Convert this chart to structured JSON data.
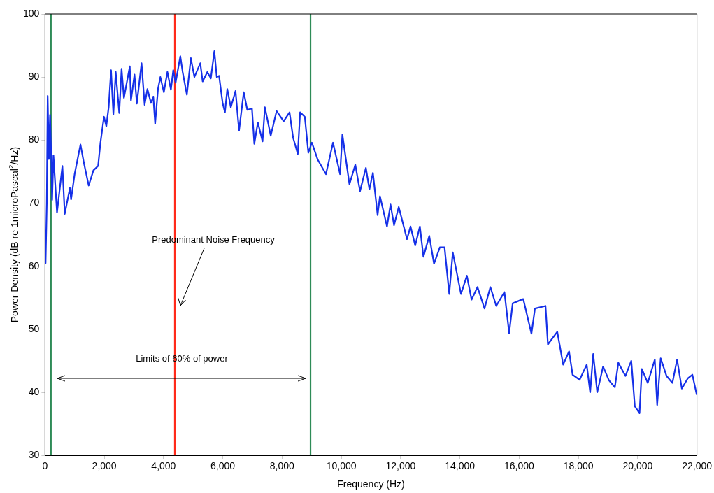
{
  "chart_data": {
    "type": "line",
    "xlabel": "Frequency (Hz)",
    "ylabel": "Power Density (dB re 1microPascal$^{2}$/Hz)",
    "xlim": [
      0,
      22000
    ],
    "xticks": [
      {
        "value": 0,
        "label": "0"
      },
      {
        "value": 2000,
        "label": "2,000"
      },
      {
        "value": 4000,
        "label": "4,000"
      },
      {
        "value": 6000,
        "label": "6,000"
      },
      {
        "value": 8000,
        "label": "8,000"
      },
      {
        "value": 10000,
        "label": "10,000"
      },
      {
        "value": 12000,
        "label": "12,000"
      },
      {
        "value": 14000,
        "label": "14,000"
      },
      {
        "value": 16000,
        "label": "16,000"
      },
      {
        "value": 18000,
        "label": "18,000"
      },
      {
        "value": 20000,
        "label": "20,000"
      },
      {
        "value": 22000,
        "label": "22,000"
      }
    ],
    "ylim": [
      30,
      100
    ],
    "yticks": [
      30,
      40,
      50,
      60,
      70,
      80,
      90,
      100
    ],
    "grid": false,
    "legend": false,
    "marker": "none",
    "line_style": "solid",
    "series": [
      {
        "color": "#1530e8",
        "x": [
          20,
          60,
          90,
          130,
          170,
          210,
          240,
          285,
          404,
          587,
          666,
          840,
          880,
          999,
          1197,
          1316,
          1474,
          1633,
          1791,
          1871,
          1990,
          2069,
          2148,
          2228,
          2307,
          2386,
          2505,
          2584,
          2663,
          2862,
          2901,
          3020,
          3099,
          3258,
          3361,
          3456,
          3575,
          3654,
          3717,
          3813,
          3892,
          4011,
          4130,
          4249,
          4328,
          4407,
          4566,
          4645,
          4787,
          4922,
          5041,
          5240,
          5319,
          5477,
          5596,
          5715,
          5795,
          5874,
          5993,
          6072,
          6151,
          6270,
          6429,
          6548,
          6706,
          6825,
          6984,
          7063,
          7182,
          7341,
          7420,
          7617,
          7816,
          8054,
          8252,
          8371,
          8530,
          8609,
          8767,
          8886,
          9005,
          9203,
          9481,
          9719,
          9957,
          10035,
          10273,
          10471,
          10630,
          10828,
          10947,
          11066,
          11224,
          11303,
          11541,
          11660,
          11779,
          11937,
          12216,
          12335,
          12493,
          12651,
          12770,
          12968,
          13127,
          13325,
          13483,
          13642,
          13761,
          14038,
          14237,
          14395,
          14594,
          14832,
          15029,
          15227,
          15504,
          15663,
          15782,
          16139,
          16416,
          16535,
          16891,
          16971,
          17288,
          17486,
          17685,
          17804,
          18042,
          18280,
          18398,
          18500,
          18636,
          18834,
          19031,
          19230,
          19349,
          19587,
          19785,
          19904,
          20063,
          20142,
          20341,
          20579,
          20658,
          20777,
          20974,
          21172,
          21331,
          21490,
          21688,
          21846,
          21990
        ],
        "values": [
          60.5,
          70,
          87,
          77,
          84,
          77.5,
          70.5,
          77.6,
          68.5,
          75.9,
          68.3,
          72.4,
          70.6,
          74.6,
          79.3,
          76.3,
          72.8,
          75.2,
          75.9,
          79.6,
          83.7,
          82.2,
          85.2,
          91.1,
          84.1,
          90.8,
          84.3,
          91.3,
          86.7,
          91.7,
          86.3,
          90.4,
          85.8,
          92.2,
          85.6,
          88.1,
          85.9,
          86.9,
          82.6,
          88.1,
          90,
          87.6,
          90.8,
          88,
          91.1,
          89.1,
          93.3,
          90.8,
          87.2,
          93,
          90,
          92.2,
          89.3,
          90.8,
          89.8,
          94.1,
          90,
          90.2,
          85.9,
          84.4,
          88.1,
          85.2,
          87.8,
          81.5,
          87.6,
          84.8,
          85,
          79.4,
          82.8,
          79.8,
          85.2,
          80.7,
          84.6,
          83,
          84.4,
          80.4,
          77.8,
          84.4,
          83.7,
          78,
          79.6,
          76.9,
          74.6,
          79.6,
          74.6,
          80.9,
          73,
          76.1,
          71.9,
          75.6,
          72.2,
          74.8,
          68.1,
          71.1,
          66.3,
          69.8,
          66.5,
          69.4,
          64.3,
          66.3,
          63.3,
          66.3,
          61.5,
          64.8,
          60.4,
          63,
          63,
          55.6,
          62.2,
          55.6,
          58.5,
          54.7,
          56.7,
          53.3,
          56.7,
          53.7,
          55.9,
          49.4,
          54.1,
          54.8,
          49.3,
          53.3,
          53.7,
          47.6,
          49.6,
          44.4,
          46.5,
          42.8,
          42,
          44.4,
          40,
          46.1,
          40,
          44.1,
          41.9,
          40.8,
          44.7,
          42.6,
          45,
          37.8,
          36.7,
          43.7,
          41.5,
          45.2,
          38,
          45.4,
          42.6,
          41.5,
          45.2,
          40.6,
          42.2,
          42.8,
          39.7
        ]
      }
    ],
    "ref_lines": [
      {
        "axis": "x",
        "value": 200,
        "color": "#2e8b57"
      },
      {
        "axis": "x",
        "value": 4380,
        "color": "#ff2a1a"
      },
      {
        "axis": "x",
        "value": 8960,
        "color": "#2e8b57"
      }
    ],
    "annotations": [
      "Predominant Noise Frequency",
      "Limits of 60% of power"
    ]
  }
}
